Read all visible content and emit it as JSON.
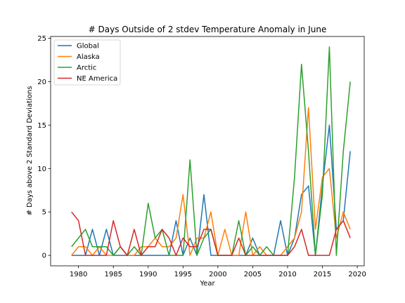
{
  "chart_data": {
    "type": "line",
    "title": "# Days Outside of 2 stdev Temperature Anomaly in June",
    "xlabel": "Year",
    "ylabel": "# Days above 2 Standard Deviations",
    "xlim": [
      1976,
      2021
    ],
    "ylim": [
      -1.2,
      25.2
    ],
    "xticks": [
      1980,
      1985,
      1990,
      1995,
      2000,
      2005,
      2010,
      2015,
      2020
    ],
    "yticks": [
      0,
      5,
      10,
      15,
      20,
      25
    ],
    "grid": false,
    "legend_position": "top-left",
    "x": [
      1979,
      1980,
      1981,
      1982,
      1983,
      1984,
      1985,
      1986,
      1987,
      1988,
      1989,
      1990,
      1991,
      1992,
      1993,
      1994,
      1995,
      1996,
      1997,
      1998,
      1999,
      2000,
      2001,
      2002,
      2003,
      2004,
      2005,
      2006,
      2007,
      2008,
      2009,
      2010,
      2011,
      2012,
      2013,
      2014,
      2015,
      2016,
      2017,
      2018,
      2019
    ],
    "series": [
      {
        "name": "Global",
        "color": "#1f77b4",
        "values": [
          0,
          0,
          0,
          3,
          0,
          3,
          0,
          0,
          0,
          0,
          0,
          0,
          0,
          0,
          0,
          4,
          0,
          2,
          0,
          7,
          0,
          0,
          0,
          0,
          0,
          0,
          2,
          0,
          0,
          0,
          4,
          0,
          2,
          7,
          8,
          0,
          8,
          15,
          3,
          4,
          12
        ]
      },
      {
        "name": "Alaska",
        "color": "#ff7f0e",
        "values": [
          0,
          1,
          1,
          0,
          1,
          0,
          0,
          1,
          0,
          0,
          1,
          1,
          2,
          1,
          1,
          2,
          7,
          0,
          2,
          2,
          5,
          0,
          3,
          0,
          0,
          5,
          0,
          1,
          0,
          0,
          0,
          1,
          2,
          5,
          17,
          3,
          9,
          10,
          2,
          5,
          3
        ]
      },
      {
        "name": "Arctic",
        "color": "#2ca02c",
        "values": [
          1,
          2,
          3,
          1,
          1,
          1,
          0,
          1,
          0,
          1,
          0,
          6,
          2,
          3,
          0,
          0,
          0,
          11,
          0,
          2,
          3,
          0,
          0,
          0,
          4,
          0,
          1,
          0,
          1,
          0,
          0,
          0,
          9,
          22,
          12,
          0,
          7,
          24,
          0,
          12,
          20
        ]
      },
      {
        "name": "NE America",
        "color": "#d62728",
        "values": [
          5,
          4,
          0,
          0,
          0,
          0,
          4,
          1,
          0,
          3,
          0,
          1,
          1,
          3,
          2,
          0,
          2,
          1,
          1,
          3,
          3,
          0,
          0,
          0,
          2,
          0,
          0,
          0,
          0,
          0,
          0,
          0,
          1,
          3,
          0,
          0,
          0,
          0,
          3,
          4,
          2
        ]
      }
    ]
  }
}
